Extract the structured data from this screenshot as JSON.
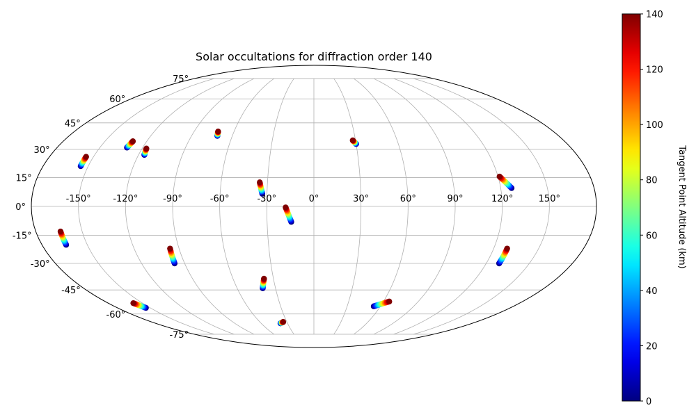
{
  "chart_data": {
    "type": "scatter",
    "projection": "mollweide",
    "title": "Solar occultations for diffraction order 140",
    "grid": true,
    "longitude_ticks": [
      {
        "value": -150,
        "label": "-150°"
      },
      {
        "value": -120,
        "label": "-120°"
      },
      {
        "value": -90,
        "label": "-90°"
      },
      {
        "value": -60,
        "label": "-60°"
      },
      {
        "value": -30,
        "label": "-30°"
      },
      {
        "value": 0,
        "label": "0°"
      },
      {
        "value": 30,
        "label": "30°"
      },
      {
        "value": 60,
        "label": "60°"
      },
      {
        "value": 90,
        "label": "90°"
      },
      {
        "value": 120,
        "label": "120°"
      },
      {
        "value": 150,
        "label": "150°"
      }
    ],
    "latitude_ticks": [
      {
        "value": 75,
        "label": "75°"
      },
      {
        "value": 60,
        "label": "60°"
      },
      {
        "value": 45,
        "label": "45°"
      },
      {
        "value": 30,
        "label": "30°"
      },
      {
        "value": 15,
        "label": "15°"
      },
      {
        "value": 0,
        "label": "0°"
      },
      {
        "value": -15,
        "label": "-15°"
      },
      {
        "value": -30,
        "label": "-30°"
      },
      {
        "value": -45,
        "label": "-45°"
      },
      {
        "value": -60,
        "label": "-60°"
      },
      {
        "value": -75,
        "label": "-75°"
      }
    ],
    "colorbar": {
      "label": "Tangent Point Altitude (km)",
      "range": [
        0,
        140
      ],
      "colormap": "jet",
      "ticks": [
        {
          "value": 0,
          "label": "0"
        },
        {
          "value": 20,
          "label": "20"
        },
        {
          "value": 40,
          "label": "40"
        },
        {
          "value": 60,
          "label": "60"
        },
        {
          "value": 80,
          "label": "80"
        },
        {
          "value": 100,
          "label": "100"
        },
        {
          "value": 120,
          "label": "120"
        },
        {
          "value": 140,
          "label": "140"
        }
      ]
    },
    "tracks": [
      {
        "start": {
          "lon": -130,
          "lat": 34.5
        },
        "end": {
          "lon": -131,
          "lat": 31
        }
      },
      {
        "start": {
          "lon": -155,
          "lat": 26
        },
        "end": {
          "lon": -155,
          "lat": 21
        }
      },
      {
        "start": {
          "lon": -117,
          "lat": 30.5
        },
        "end": {
          "lon": -116,
          "lat": 27
        }
      },
      {
        "start": {
          "lon": -72,
          "lat": 40
        },
        "end": {
          "lon": -71,
          "lat": 37.5
        }
      },
      {
        "start": {
          "lon": -35,
          "lat": 12.5
        },
        "end": {
          "lon": -33,
          "lat": 6.5
        }
      },
      {
        "start": {
          "lon": -18,
          "lat": -0.5
        },
        "end": {
          "lon": -14.5,
          "lat": -8
        }
      },
      {
        "start": {
          "lon": 28,
          "lat": 35
        },
        "end": {
          "lon": 30,
          "lat": 33
        }
      },
      {
        "start": {
          "lon": 121,
          "lat": 15.5
        },
        "end": {
          "lon": 127,
          "lat": 9.5
        }
      },
      {
        "start": {
          "lon": -164,
          "lat": -13
        },
        "end": {
          "lon": -164,
          "lat": -20
        }
      },
      {
        "start": {
          "lon": -96,
          "lat": -22
        },
        "end": {
          "lon": -97,
          "lat": -30
        }
      },
      {
        "start": {
          "lon": 129,
          "lat": -22
        },
        "end": {
          "lon": 129,
          "lat": -30
        }
      },
      {
        "start": {
          "lon": -37,
          "lat": -38.5
        },
        "end": {
          "lon": -40,
          "lat": -44
        }
      },
      {
        "start": {
          "lon": -158,
          "lat": -53
        },
        "end": {
          "lon": -154,
          "lat": -56
        }
      },
      {
        "start": {
          "lon": 65,
          "lat": -52
        },
        "end": {
          "lon": 54,
          "lat": -55
        }
      },
      {
        "start": {
          "lon": -34,
          "lat": -65.5
        },
        "end": {
          "lon": -38,
          "lat": -66.5
        }
      }
    ]
  }
}
